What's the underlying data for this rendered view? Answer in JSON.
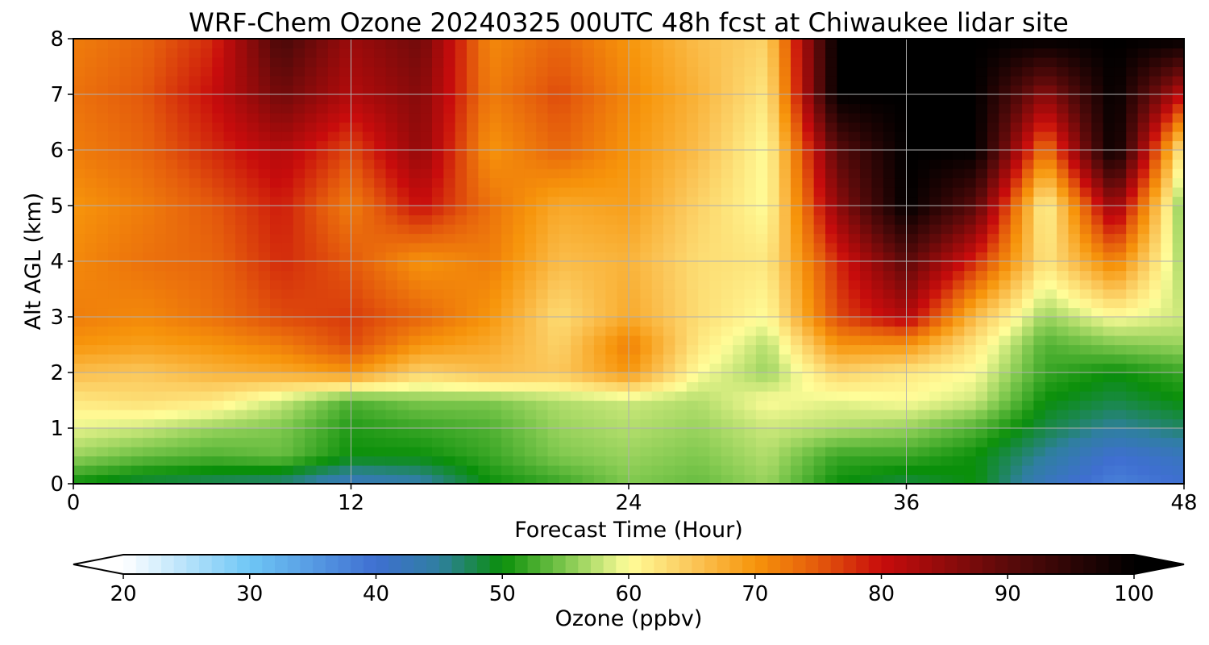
{
  "chart_data": {
    "type": "heatmap",
    "title": "WRF-Chem Ozone  20240325 00UTC 48h fcst at Chiwaukee lidar site",
    "xlabel": "Forecast Time (Hour)",
    "ylabel": "Alt AGL (km)",
    "xlim": [
      0,
      48
    ],
    "ylim": [
      0,
      8
    ],
    "x_ticks": [
      0,
      12,
      24,
      36,
      48
    ],
    "y_ticks": [
      0,
      1,
      2,
      3,
      4,
      5,
      6,
      7,
      8
    ],
    "grid": true,
    "colorbar": {
      "label": "Ozone  (ppbv)",
      "range": [
        20,
        100
      ],
      "ticks": [
        20,
        30,
        40,
        50,
        60,
        70,
        80,
        90,
        100
      ],
      "extend": "both",
      "colors": [
        {
          "value": 20,
          "color": "#ffffff"
        },
        {
          "value": 30,
          "color": "#6ec6f5"
        },
        {
          "value": 40,
          "color": "#3f6fd1"
        },
        {
          "value": 45,
          "color": "#2f7fa0"
        },
        {
          "value": 50,
          "color": "#0a8f0a"
        },
        {
          "value": 55,
          "color": "#7fc84e"
        },
        {
          "value": 60,
          "color": "#fffd99"
        },
        {
          "value": 65,
          "color": "#fbc75a"
        },
        {
          "value": 70,
          "color": "#f7950b"
        },
        {
          "value": 75,
          "color": "#e45a0c"
        },
        {
          "value": 80,
          "color": "#c80c0c"
        },
        {
          "value": 90,
          "color": "#5a0a0a"
        },
        {
          "value": 100,
          "color": "#000000"
        }
      ]
    },
    "grid_x": [
      0,
      3,
      6,
      9,
      12,
      15,
      18,
      21,
      24,
      27,
      30,
      33,
      36,
      39,
      42,
      45,
      48
    ],
    "grid_y": [
      0,
      0.5,
      1,
      1.5,
      2,
      2.5,
      3,
      4,
      5,
      6,
      7,
      8
    ],
    "z": [
      [
        50,
        48,
        47,
        46,
        42,
        44,
        50,
        52,
        55,
        54,
        56,
        50,
        48,
        50,
        42,
        38,
        40
      ],
      [
        56,
        54,
        53,
        54,
        50,
        50,
        52,
        55,
        56,
        55,
        57,
        52,
        52,
        50,
        45,
        40,
        42
      ],
      [
        59,
        58,
        56,
        55,
        51,
        52,
        53,
        56,
        57,
        56,
        58,
        57,
        56,
        53,
        48,
        45,
        47
      ],
      [
        62,
        63,
        62,
        58,
        53,
        55,
        55,
        57,
        58,
        57,
        60,
        59,
        60,
        58,
        50,
        48,
        50
      ],
      [
        66,
        65,
        67,
        68,
        70,
        64,
        66,
        65,
        70,
        60,
        56,
        64,
        62,
        60,
        52,
        50,
        52
      ],
      [
        70,
        69,
        70,
        72,
        76,
        70,
        68,
        64,
        72,
        62,
        57,
        70,
        70,
        62,
        53,
        55,
        56
      ],
      [
        72,
        71,
        73,
        76,
        77,
        74,
        70,
        63,
        68,
        63,
        60,
        76,
        82,
        66,
        56,
        60,
        58
      ],
      [
        71,
        73,
        74,
        78,
        75,
        70,
        72,
        66,
        67,
        63,
        62,
        78,
        90,
        78,
        62,
        72,
        56
      ],
      [
        70,
        72,
        75,
        79,
        72,
        80,
        73,
        68,
        69,
        64,
        60,
        85,
        100,
        90,
        60,
        85,
        54
      ],
      [
        72,
        74,
        78,
        82,
        76,
        85,
        70,
        74,
        70,
        66,
        60,
        90,
        100,
        100,
        72,
        100,
        60
      ],
      [
        73,
        75,
        80,
        88,
        82,
        86,
        72,
        76,
        71,
        67,
        62,
        100,
        100,
        100,
        85,
        100,
        80
      ],
      [
        72,
        74,
        78,
        92,
        84,
        88,
        71,
        74,
        70,
        66,
        64,
        100,
        100,
        100,
        100,
        100,
        100
      ]
    ]
  }
}
